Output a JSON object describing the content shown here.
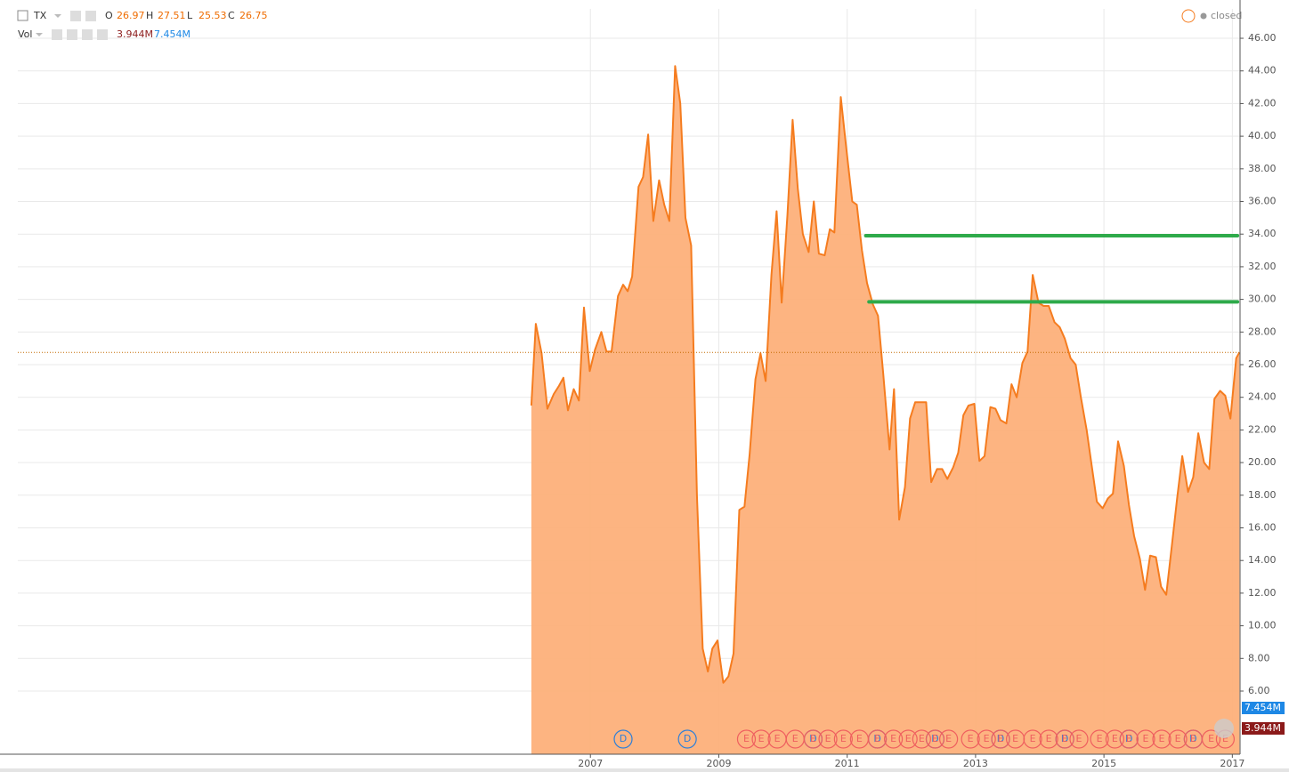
{
  "chart_data": {
    "type": "area",
    "status": "closed",
    "vol_label": "Vol",
    "volume_labels": [
      {
        "label": "3.944M",
        "color": "#8b1a1a"
      },
      {
        "label": "7.454M",
        "color": "#1e88e5"
      }
    ],
    "ohlc": [
      {
        "label": "O",
        "value": 26.97
      },
      {
        "label": "H",
        "value": 27.51
      },
      {
        "label": "L",
        "value": 25.53
      },
      {
        "label": "C",
        "value": 26.75
      }
    ],
    "xlim": [
      1998.08,
      2017.12
    ],
    "xticks": [
      2007,
      2009,
      2011,
      2013,
      2015,
      2017
    ],
    "ylim": [
      2.13,
      47.8
    ],
    "yticks": [
      {
        "value": 6,
        "label": "6.00"
      },
      {
        "value": 8,
        "label": "8.00"
      },
      {
        "value": 10,
        "label": "10.00"
      },
      {
        "value": 12,
        "label": "12.00"
      },
      {
        "value": 14,
        "label": "14.00"
      },
      {
        "value": 16,
        "label": "16.00"
      },
      {
        "value": 18,
        "label": "18.00"
      },
      {
        "value": 20,
        "label": "20.00"
      },
      {
        "value": 22,
        "label": "22.00"
      },
      {
        "value": 24,
        "label": "24.00"
      },
      {
        "value": 26,
        "label": "26.00"
      },
      {
        "value": 28,
        "label": "28.00"
      },
      {
        "value": 30,
        "label": "30.00"
      },
      {
        "value": 32,
        "label": "32.00"
      },
      {
        "value": 34,
        "label": "34.00"
      },
      {
        "value": 36,
        "label": "36.00"
      },
      {
        "value": 38,
        "label": "38.00"
      },
      {
        "value": 40,
        "label": "40.00"
      },
      {
        "value": 42,
        "label": "42.00"
      },
      {
        "value": 44,
        "label": "44.00"
      },
      {
        "value": 46,
        "label": "46.00"
      }
    ],
    "grid": true,
    "series": [
      {
        "name": "TX",
        "color": "#f57c1f",
        "fill": "#fdae76",
        "x": [
          2006.08,
          2006.15,
          2006.24,
          2006.33,
          2006.43,
          2006.51,
          2006.58,
          2006.65,
          2006.74,
          2006.82,
          2006.9,
          2006.99,
          2007.07,
          2007.17,
          2007.25,
          2007.33,
          2007.43,
          2007.51,
          2007.58,
          2007.65,
          2007.75,
          2007.82,
          2007.9,
          2007.98,
          2008.07,
          2008.15,
          2008.23,
          2008.32,
          2008.4,
          2008.48,
          2008.57,
          2008.66,
          2008.75,
          2008.83,
          2008.9,
          2008.98,
          2009.07,
          2009.15,
          2009.23,
          2009.32,
          2009.4,
          2009.48,
          2009.57,
          2009.65,
          2009.73,
          2009.82,
          2009.9,
          2009.98,
          2010.07,
          2010.15,
          2010.23,
          2010.31,
          2010.4,
          2010.48,
          2010.56,
          2010.65,
          2010.73,
          2010.8,
          2010.9,
          2010.98,
          2011.08,
          2011.15,
          2011.23,
          2011.31,
          2011.4,
          2011.48,
          2011.56,
          2011.66,
          2011.73,
          2011.81,
          2011.9,
          2011.98,
          2012.06,
          2012.23,
          2012.31,
          2012.4,
          2012.48,
          2012.56,
          2012.65,
          2012.73,
          2012.81,
          2012.89,
          2012.98,
          2013.06,
          2013.14,
          2013.23,
          2013.31,
          2013.39,
          2013.48,
          2013.56,
          2013.64,
          2013.73,
          2013.81,
          2013.89,
          2013.98,
          2014.06,
          2014.14,
          2014.23,
          2014.31,
          2014.39,
          2014.48,
          2014.56,
          2014.64,
          2014.73,
          2014.81,
          2014.89,
          2014.98,
          2015.06,
          2015.14,
          2015.22,
          2015.31,
          2015.39,
          2015.47,
          2015.56,
          2015.64,
          2015.72,
          2015.81,
          2015.89,
          2015.97,
          2016.06,
          2016.14,
          2016.22,
          2016.31,
          2016.39,
          2016.47,
          2016.56,
          2016.64,
          2016.72,
          2016.81,
          2016.89,
          2016.97,
          2017.06,
          2017.11
        ],
        "values": [
          23.5,
          28.5,
          26.7,
          23.3,
          24.2,
          24.7,
          25.2,
          23.2,
          24.5,
          23.8,
          29.5,
          25.6,
          26.9,
          28.0,
          26.8,
          26.8,
          30.2,
          30.9,
          30.5,
          31.4,
          36.9,
          37.5,
          40.1,
          34.8,
          37.3,
          35.8,
          34.8,
          44.3,
          42.0,
          35.0,
          33.3,
          18.0,
          8.6,
          7.2,
          8.6,
          9.1,
          6.5,
          6.9,
          8.3,
          17.1,
          17.3,
          20.5,
          25.1,
          26.7,
          25.0,
          31.5,
          35.4,
          29.8,
          35.2,
          41.0,
          36.8,
          34.0,
          32.9,
          36.0,
          32.8,
          32.7,
          34.3,
          34.1,
          42.4,
          39.5,
          36.0,
          35.8,
          33.0,
          31.0,
          29.7,
          29.0,
          25.5,
          20.8,
          24.5,
          16.5,
          18.5,
          22.7,
          23.7,
          23.7,
          18.8,
          19.6,
          19.6,
          19.0,
          19.7,
          20.6,
          22.9,
          23.5,
          23.6,
          20.1,
          20.4,
          23.4,
          23.3,
          22.6,
          22.4,
          24.8,
          24.0,
          26.1,
          26.8,
          31.5,
          29.8,
          29.6,
          29.6,
          28.6,
          28.3,
          27.6,
          26.4,
          26.0,
          24.0,
          22.0,
          19.8,
          17.6,
          17.2,
          17.8,
          18.1,
          21.3,
          19.8,
          17.4,
          15.5,
          14.1,
          12.2,
          14.3,
          14.2,
          12.4,
          11.9,
          15.0,
          17.8,
          20.4,
          18.2,
          19.1,
          21.8,
          20.0,
          19.6,
          23.9,
          24.4,
          24.1,
          22.7,
          26.4,
          26.75
        ]
      }
    ],
    "levels": [
      {
        "value": 33.9,
        "x": [
          2011.29,
          2017.08
        ],
        "color": "#2eaa4a"
      },
      {
        "value": 29.85,
        "x": [
          2011.34,
          2017.08
        ],
        "color": "#2eaa4a"
      }
    ],
    "events": [
      {
        "label": "D",
        "color": "#2e7fd8",
        "x": [
          2007.51,
          2008.51,
          2010.47,
          2011.47,
          2012.37,
          2013.39,
          2014.39,
          2015.39,
          2016.39
        ]
      },
      {
        "label": "E",
        "color": "#ef5f5f",
        "x": [
          2009.43,
          2009.66,
          2009.91,
          2010.19,
          2010.47,
          2010.7,
          2010.94,
          2011.19,
          2011.47,
          2011.72,
          2011.95,
          2012.16,
          2012.37,
          2012.58,
          2012.92,
          2013.17,
          2013.39,
          2013.62,
          2013.89,
          2014.14,
          2014.39,
          2014.61,
          2014.93,
          2015.17,
          2015.39,
          2015.65,
          2015.9,
          2016.15,
          2016.39,
          2016.67,
          2016.89
        ]
      }
    ]
  }
}
